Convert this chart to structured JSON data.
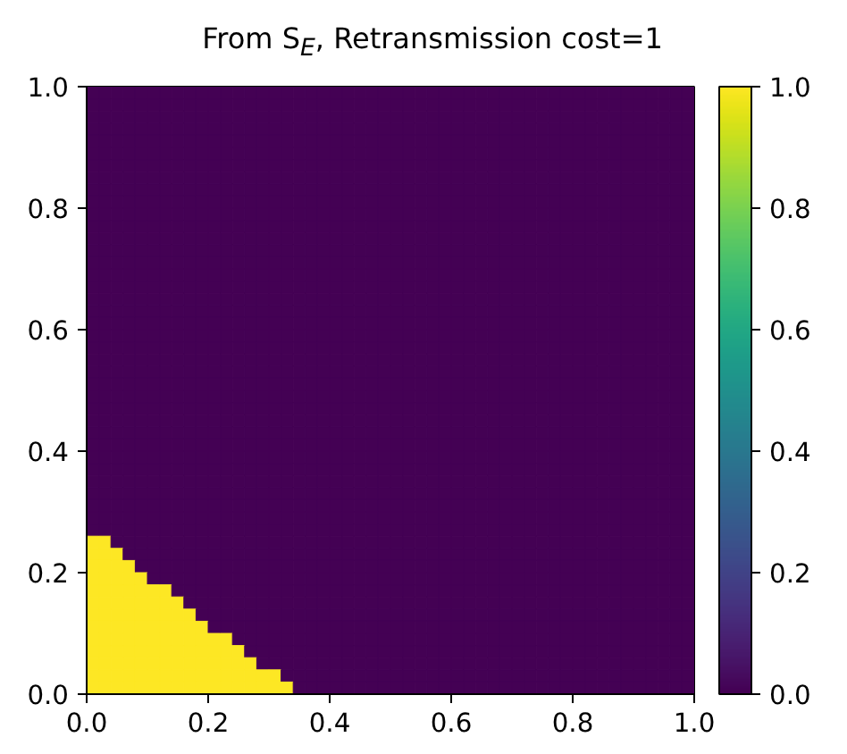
{
  "chart_data": {
    "type": "heatmap",
    "title": "From S$_{E}$, Retransmission cost=1",
    "xlim": [
      0,
      1
    ],
    "ylim": [
      0,
      1
    ],
    "xticks": [
      {
        "value": 0,
        "label": "0.0"
      },
      {
        "value": 0.2,
        "label": "0.2"
      },
      {
        "value": 0.4,
        "label": "0.4"
      },
      {
        "value": 0.6,
        "label": "0.6"
      },
      {
        "value": 0.8,
        "label": "0.8"
      },
      {
        "value": 1,
        "label": "1.0"
      }
    ],
    "yticks": [
      {
        "value": 0,
        "label": "0.0"
      },
      {
        "value": 0.2,
        "label": "0.2"
      },
      {
        "value": 0.4,
        "label": "0.4"
      },
      {
        "value": 0.6,
        "label": "0.6"
      },
      {
        "value": 0.8,
        "label": "0.8"
      },
      {
        "value": 1,
        "label": "1.0"
      }
    ],
    "clim": [
      0,
      1
    ],
    "cticks": [
      {
        "value": 0,
        "label": "0.0"
      },
      {
        "value": 0.2,
        "label": "0.2"
      },
      {
        "value": 0.4,
        "label": "0.4"
      },
      {
        "value": 0.6,
        "label": "0.6"
      },
      {
        "value": 0.8,
        "label": "0.8"
      },
      {
        "value": 1,
        "label": "1.0"
      }
    ],
    "cells": [
      [
        0,
        0,
        0,
        0,
        0,
        0,
        0,
        0,
        0,
        0,
        0,
        0,
        0,
        0,
        0,
        0,
        0,
        0,
        0,
        0,
        0,
        0,
        0,
        0,
        0,
        0,
        0,
        0,
        0,
        0,
        0,
        0,
        0,
        0,
        0,
        0,
        0,
        0,
        0,
        0,
        0,
        0,
        0,
        0,
        0,
        0,
        0,
        0,
        0,
        0
      ],
      [
        0,
        0,
        0,
        0,
        0,
        0,
        0,
        0,
        0,
        0,
        0,
        0,
        0,
        0,
        0,
        0,
        0,
        0,
        0,
        0,
        0,
        0,
        0,
        0,
        0,
        0,
        0,
        0,
        0,
        0,
        0,
        0,
        0,
        0,
        0,
        0,
        0,
        0,
        0,
        0,
        0,
        0,
        0,
        0,
        0,
        0,
        0,
        0,
        0,
        0
      ],
      [
        0,
        0,
        0,
        0,
        0,
        0,
        0,
        0,
        0,
        0,
        0,
        0,
        0,
        0,
        0,
        0,
        0,
        0,
        0,
        0,
        0,
        0,
        0,
        0,
        0,
        0,
        0,
        0,
        0,
        0,
        0,
        0,
        0,
        0,
        0,
        0,
        0,
        0,
        0,
        0,
        0,
        0,
        0,
        0,
        0,
        0,
        0,
        0,
        0,
        0
      ],
      [
        0,
        0,
        0,
        0,
        0,
        0,
        0,
        0,
        0,
        0,
        0,
        0,
        0,
        0,
        0,
        0,
        0,
        0,
        0,
        0,
        0,
        0,
        0,
        0,
        0,
        0,
        0,
        0,
        0,
        0,
        0,
        0,
        0,
        0,
        0,
        0,
        0,
        0,
        0,
        0,
        0,
        0,
        0,
        0,
        0,
        0,
        0,
        0,
        0,
        0
      ],
      [
        0,
        0,
        0,
        0,
        0,
        0,
        0,
        0,
        0,
        0,
        0,
        0,
        0,
        0,
        0,
        0,
        0,
        0,
        0,
        0,
        0,
        0,
        0,
        0,
        0,
        0,
        0,
        0,
        0,
        0,
        0,
        0,
        0,
        0,
        0,
        0,
        0,
        0,
        0,
        0,
        0,
        0,
        0,
        0,
        0,
        0,
        0,
        0,
        0,
        0
      ],
      [
        0,
        0,
        0,
        0,
        0,
        0,
        0,
        0,
        0,
        0,
        0,
        0,
        0,
        0,
        0,
        0,
        0,
        0,
        0,
        0,
        0,
        0,
        0,
        0,
        0,
        0,
        0,
        0,
        0,
        0,
        0,
        0,
        0,
        0,
        0,
        0,
        0,
        0,
        0,
        0,
        0,
        0,
        0,
        0,
        0,
        0,
        0,
        0,
        0,
        0
      ],
      [
        0,
        0,
        0,
        0,
        0,
        0,
        0,
        0,
        0,
        0,
        0,
        0,
        0,
        0,
        0,
        0,
        0,
        0,
        0,
        0,
        0,
        0,
        0,
        0,
        0,
        0,
        0,
        0,
        0,
        0,
        0,
        0,
        0,
        0,
        0,
        0,
        0,
        0,
        0,
        0,
        0,
        0,
        0,
        0,
        0,
        0,
        0,
        0,
        0,
        0
      ],
      [
        0,
        0,
        0,
        0,
        0,
        0,
        0,
        0,
        0,
        0,
        0,
        0,
        0,
        0,
        0,
        0,
        0,
        0,
        0,
        0,
        0,
        0,
        0,
        0,
        0,
        0,
        0,
        0,
        0,
        0,
        0,
        0,
        0,
        0,
        0,
        0,
        0,
        0,
        0,
        0,
        0,
        0,
        0,
        0,
        0,
        0,
        0,
        0,
        0,
        0
      ],
      [
        0,
        0,
        0,
        0,
        0,
        0,
        0,
        0,
        0,
        0,
        0,
        0,
        0,
        0,
        0,
        0,
        0,
        0,
        0,
        0,
        0,
        0,
        0,
        0,
        0,
        0,
        0,
        0,
        0,
        0,
        0,
        0,
        0,
        0,
        0,
        0,
        0,
        0,
        0,
        0,
        0,
        0,
        0,
        0,
        0,
        0,
        0,
        0,
        0,
        0
      ],
      [
        0,
        0,
        0,
        0,
        0,
        0,
        0,
        0,
        0,
        0,
        0,
        0,
        0,
        0,
        0,
        0,
        0,
        0,
        0,
        0,
        0,
        0,
        0,
        0,
        0,
        0,
        0,
        0,
        0,
        0,
        0,
        0,
        0,
        0,
        0,
        0,
        0,
        0,
        0,
        0,
        0,
        0,
        0,
        0,
        0,
        0,
        0,
        0,
        0,
        0
      ],
      [
        0,
        0,
        0,
        0,
        0,
        0,
        0,
        0,
        0,
        0,
        0,
        0,
        0,
        0,
        0,
        0,
        0,
        0,
        0,
        0,
        0,
        0,
        0,
        0,
        0,
        0,
        0,
        0,
        0,
        0,
        0,
        0,
        0,
        0,
        0,
        0,
        0,
        0,
        0,
        0,
        0,
        0,
        0,
        0,
        0,
        0,
        0,
        0,
        0,
        0
      ],
      [
        0,
        0,
        0,
        0,
        0,
        0,
        0,
        0,
        0,
        0,
        0,
        0,
        0,
        0,
        0,
        0,
        0,
        0,
        0,
        0,
        0,
        0,
        0,
        0,
        0,
        0,
        0,
        0,
        0,
        0,
        0,
        0,
        0,
        0,
        0,
        0,
        0,
        0,
        0,
        0,
        0,
        0,
        0,
        0,
        0,
        0,
        0,
        0,
        0,
        0
      ],
      [
        0,
        0,
        0,
        0,
        0,
        0,
        0,
        0,
        0,
        0,
        0,
        0,
        0,
        0,
        0,
        0,
        0,
        0,
        0,
        0,
        0,
        0,
        0,
        0,
        0,
        0,
        0,
        0,
        0,
        0,
        0,
        0,
        0,
        0,
        0,
        0,
        0,
        0,
        0,
        0,
        0,
        0,
        0,
        0,
        0,
        0,
        0,
        0,
        0,
        0
      ],
      [
        0,
        0,
        0,
        0,
        0,
        0,
        0,
        0,
        0,
        0,
        0,
        0,
        0,
        0,
        0,
        0,
        0,
        0,
        0,
        0,
        0,
        0,
        0,
        0,
        0,
        0,
        0,
        0,
        0,
        0,
        0,
        0,
        0,
        0,
        0,
        0,
        0,
        0,
        0,
        0,
        0,
        0,
        0,
        0,
        0,
        0,
        0,
        0,
        0,
        0
      ],
      [
        0,
        0,
        0,
        0,
        0,
        0,
        0,
        0,
        0,
        0,
        0,
        0,
        0,
        0,
        0,
        0,
        0,
        0,
        0,
        0,
        0,
        0,
        0,
        0,
        0,
        0,
        0,
        0,
        0,
        0,
        0,
        0,
        0,
        0,
        0,
        0,
        0,
        0,
        0,
        0,
        0,
        0,
        0,
        0,
        0,
        0,
        0,
        0,
        0,
        0
      ],
      [
        0,
        0,
        0,
        0,
        0,
        0,
        0,
        0,
        0,
        0,
        0,
        0,
        0,
        0,
        0,
        0,
        0,
        0,
        0,
        0,
        0,
        0,
        0,
        0,
        0,
        0,
        0,
        0,
        0,
        0,
        0,
        0,
        0,
        0,
        0,
        0,
        0,
        0,
        0,
        0,
        0,
        0,
        0,
        0,
        0,
        0,
        0,
        0,
        0,
        0
      ],
      [
        0,
        0,
        0,
        0,
        0,
        0,
        0,
        0,
        0,
        0,
        0,
        0,
        0,
        0,
        0,
        0,
        0,
        0,
        0,
        0,
        0,
        0,
        0,
        0,
        0,
        0,
        0,
        0,
        0,
        0,
        0,
        0,
        0,
        0,
        0,
        0,
        0,
        0,
        0,
        0,
        0,
        0,
        0,
        0,
        0,
        0,
        0,
        0,
        0,
        0
      ],
      [
        0,
        0,
        0,
        0,
        0,
        0,
        0,
        0,
        0,
        0,
        0,
        0,
        0,
        0,
        0,
        0,
        0,
        0,
        0,
        0,
        0,
        0,
        0,
        0,
        0,
        0,
        0,
        0,
        0,
        0,
        0,
        0,
        0,
        0,
        0,
        0,
        0,
        0,
        0,
        0,
        0,
        0,
        0,
        0,
        0,
        0,
        0,
        0,
        0,
        0
      ],
      [
        0,
        0,
        0,
        0,
        0,
        0,
        0,
        0,
        0,
        0,
        0,
        0,
        0,
        0,
        0,
        0,
        0,
        0,
        0,
        0,
        0,
        0,
        0,
        0,
        0,
        0,
        0,
        0,
        0,
        0,
        0,
        0,
        0,
        0,
        0,
        0,
        0,
        0,
        0,
        0,
        0,
        0,
        0,
        0,
        0,
        0,
        0,
        0,
        0,
        0
      ],
      [
        0,
        0,
        0,
        0,
        0,
        0,
        0,
        0,
        0,
        0,
        0,
        0,
        0,
        0,
        0,
        0,
        0,
        0,
        0,
        0,
        0,
        0,
        0,
        0,
        0,
        0,
        0,
        0,
        0,
        0,
        0,
        0,
        0,
        0,
        0,
        0,
        0,
        0,
        0,
        0,
        0,
        0,
        0,
        0,
        0,
        0,
        0,
        0,
        0,
        0
      ],
      [
        0,
        0,
        0,
        0,
        0,
        0,
        0,
        0,
        0,
        0,
        0,
        0,
        0,
        0,
        0,
        0,
        0,
        0,
        0,
        0,
        0,
        0,
        0,
        0,
        0,
        0,
        0,
        0,
        0,
        0,
        0,
        0,
        0,
        0,
        0,
        0,
        0,
        0,
        0,
        0,
        0,
        0,
        0,
        0,
        0,
        0,
        0,
        0,
        0,
        0
      ],
      [
        0,
        0,
        0,
        0,
        0,
        0,
        0,
        0,
        0,
        0,
        0,
        0,
        0,
        0,
        0,
        0,
        0,
        0,
        0,
        0,
        0,
        0,
        0,
        0,
        0,
        0,
        0,
        0,
        0,
        0,
        0,
        0,
        0,
        0,
        0,
        0,
        0,
        0,
        0,
        0,
        0,
        0,
        0,
        0,
        0,
        0,
        0,
        0,
        0,
        0
      ],
      [
        0,
        0,
        0,
        0,
        0,
        0,
        0,
        0,
        0,
        0,
        0,
        0,
        0,
        0,
        0,
        0,
        0,
        0,
        0,
        0,
        0,
        0,
        0,
        0,
        0,
        0,
        0,
        0,
        0,
        0,
        0,
        0,
        0,
        0,
        0,
        0,
        0,
        0,
        0,
        0,
        0,
        0,
        0,
        0,
        0,
        0,
        0,
        0,
        0,
        0
      ],
      [
        0,
        0,
        0,
        0,
        0,
        0,
        0,
        0,
        0,
        0,
        0,
        0,
        0,
        0,
        0,
        0,
        0,
        0,
        0,
        0,
        0,
        0,
        0,
        0,
        0,
        0,
        0,
        0,
        0,
        0,
        0,
        0,
        0,
        0,
        0,
        0,
        0,
        0,
        0,
        0,
        0,
        0,
        0,
        0,
        0,
        0,
        0,
        0,
        0,
        0
      ],
      [
        0,
        0,
        0,
        0,
        0,
        0,
        0,
        0,
        0,
        0,
        0,
        0,
        0,
        0,
        0,
        0,
        0,
        0,
        0,
        0,
        0,
        0,
        0,
        0,
        0,
        0,
        0,
        0,
        0,
        0,
        0,
        0,
        0,
        0,
        0,
        0,
        0,
        0,
        0,
        0,
        0,
        0,
        0,
        0,
        0,
        0,
        0,
        0,
        0,
        0
      ],
      [
        0,
        0,
        0,
        0,
        0,
        0,
        0,
        0,
        0,
        0,
        0,
        0,
        0,
        0,
        0,
        0,
        0,
        0,
        0,
        0,
        0,
        0,
        0,
        0,
        0,
        0,
        0,
        0,
        0,
        0,
        0,
        0,
        0,
        0,
        0,
        0,
        0,
        0,
        0,
        0,
        0,
        0,
        0,
        0,
        0,
        0,
        0,
        0,
        0,
        0
      ],
      [
        0,
        0,
        0,
        0,
        0,
        0,
        0,
        0,
        0,
        0,
        0,
        0,
        0,
        0,
        0,
        0,
        0,
        0,
        0,
        0,
        0,
        0,
        0,
        0,
        0,
        0,
        0,
        0,
        0,
        0,
        0,
        0,
        0,
        0,
        0,
        0,
        0,
        0,
        0,
        0,
        0,
        0,
        0,
        0,
        0,
        0,
        0,
        0,
        0,
        0
      ],
      [
        0,
        0,
        0,
        0,
        0,
        0,
        0,
        0,
        0,
        0,
        0,
        0,
        0,
        0,
        0,
        0,
        0,
        0,
        0,
        0,
        0,
        0,
        0,
        0,
        0,
        0,
        0,
        0,
        0,
        0,
        0,
        0,
        0,
        0,
        0,
        0,
        0,
        0,
        0,
        0,
        0,
        0,
        0,
        0,
        0,
        0,
        0,
        0,
        0,
        0
      ],
      [
        0,
        0,
        0,
        0,
        0,
        0,
        0,
        0,
        0,
        0,
        0,
        0,
        0,
        0,
        0,
        0,
        0,
        0,
        0,
        0,
        0,
        0,
        0,
        0,
        0,
        0,
        0,
        0,
        0,
        0,
        0,
        0,
        0,
        0,
        0,
        0,
        0,
        0,
        0,
        0,
        0,
        0,
        0,
        0,
        0,
        0,
        0,
        0,
        0,
        0
      ],
      [
        0,
        0,
        0,
        0,
        0,
        0,
        0,
        0,
        0,
        0,
        0,
        0,
        0,
        0,
        0,
        0,
        0,
        0,
        0,
        0,
        0,
        0,
        0,
        0,
        0,
        0,
        0,
        0,
        0,
        0,
        0,
        0,
        0,
        0,
        0,
        0,
        0,
        0,
        0,
        0,
        0,
        0,
        0,
        0,
        0,
        0,
        0,
        0,
        0,
        0
      ],
      [
        0,
        0,
        0,
        0,
        0,
        0,
        0,
        0,
        0,
        0,
        0,
        0,
        0,
        0,
        0,
        0,
        0,
        0,
        0,
        0,
        0,
        0,
        0,
        0,
        0,
        0,
        0,
        0,
        0,
        0,
        0,
        0,
        0,
        0,
        0,
        0,
        0,
        0,
        0,
        0,
        0,
        0,
        0,
        0,
        0,
        0,
        0,
        0,
        0,
        0
      ],
      [
        0,
        0,
        0,
        0,
        0,
        0,
        0,
        0,
        0,
        0,
        0,
        0,
        0,
        0,
        0,
        0,
        0,
        0,
        0,
        0,
        0,
        0,
        0,
        0,
        0,
        0,
        0,
        0,
        0,
        0,
        0,
        0,
        0,
        0,
        0,
        0,
        0,
        0,
        0,
        0,
        0,
        0,
        0,
        0,
        0,
        0,
        0,
        0,
        0,
        0
      ],
      [
        0,
        0,
        0,
        0,
        0,
        0,
        0,
        0,
        0,
        0,
        0,
        0,
        0,
        0,
        0,
        0,
        0,
        0,
        0,
        0,
        0,
        0,
        0,
        0,
        0,
        0,
        0,
        0,
        0,
        0,
        0,
        0,
        0,
        0,
        0,
        0,
        0,
        0,
        0,
        0,
        0,
        0,
        0,
        0,
        0,
        0,
        0,
        0,
        0,
        0
      ],
      [
        0,
        0,
        0,
        0,
        0,
        0,
        0,
        0,
        0,
        0,
        0,
        0,
        0,
        0,
        0,
        0,
        0,
        0,
        0,
        0,
        0,
        0,
        0,
        0,
        0,
        0,
        0,
        0,
        0,
        0,
        0,
        0,
        0,
        0,
        0,
        0,
        0,
        0,
        0,
        0,
        0,
        0,
        0,
        0,
        0,
        0,
        0,
        0,
        0,
        0
      ],
      [
        0,
        0,
        0,
        0,
        0,
        0,
        0,
        0,
        0,
        0,
        0,
        0,
        0,
        0,
        0,
        0,
        0,
        0,
        0,
        0,
        0,
        0,
        0,
        0,
        0,
        0,
        0,
        0,
        0,
        0,
        0,
        0,
        0,
        0,
        0,
        0,
        0,
        0,
        0,
        0,
        0,
        0,
        0,
        0,
        0,
        0,
        0,
        0,
        0,
        0
      ],
      [
        0,
        0,
        0,
        0,
        0,
        0,
        0,
        0,
        0,
        0,
        0,
        0,
        0,
        0,
        0,
        0,
        0,
        0,
        0,
        0,
        0,
        0,
        0,
        0,
        0,
        0,
        0,
        0,
        0,
        0,
        0,
        0,
        0,
        0,
        0,
        0,
        0,
        0,
        0,
        0,
        0,
        0,
        0,
        0,
        0,
        0,
        0,
        0,
        0,
        0
      ],
      [
        0,
        0,
        0,
        0,
        0,
        0,
        0,
        0,
        0,
        0,
        0,
        0,
        0,
        0,
        0,
        0,
        0,
        0,
        0,
        0,
        0,
        0,
        0,
        0,
        0,
        0,
        0,
        0,
        0,
        0,
        0,
        0,
        0,
        0,
        0,
        0,
        0,
        0,
        0,
        0,
        0,
        0,
        0,
        0,
        0,
        0,
        0,
        0,
        0,
        0
      ],
      [
        1,
        1,
        0,
        0,
        0,
        0,
        0,
        0,
        0,
        0,
        0,
        0,
        0,
        0,
        0,
        0,
        0,
        0,
        0,
        0,
        0,
        0,
        0,
        0,
        0,
        0,
        0,
        0,
        0,
        0,
        0,
        0,
        0,
        0,
        0,
        0,
        0,
        0,
        0,
        0,
        0,
        0,
        0,
        0,
        0,
        0,
        0,
        0,
        0,
        0
      ],
      [
        1,
        1,
        1,
        0,
        0,
        0,
        0,
        0,
        0,
        0,
        0,
        0,
        0,
        0,
        0,
        0,
        0,
        0,
        0,
        0,
        0,
        0,
        0,
        0,
        0,
        0,
        0,
        0,
        0,
        0,
        0,
        0,
        0,
        0,
        0,
        0,
        0,
        0,
        0,
        0,
        0,
        0,
        0,
        0,
        0,
        0,
        0,
        0,
        0,
        0
      ],
      [
        1,
        1,
        1,
        1,
        0,
        0,
        0,
        0,
        0,
        0,
        0,
        0,
        0,
        0,
        0,
        0,
        0,
        0,
        0,
        0,
        0,
        0,
        0,
        0,
        0,
        0,
        0,
        0,
        0,
        0,
        0,
        0,
        0,
        0,
        0,
        0,
        0,
        0,
        0,
        0,
        0,
        0,
        0,
        0,
        0,
        0,
        0,
        0,
        0,
        0
      ],
      [
        1,
        1,
        1,
        1,
        1,
        0,
        0,
        0,
        0,
        0,
        0,
        0,
        0,
        0,
        0,
        0,
        0,
        0,
        0,
        0,
        0,
        0,
        0,
        0,
        0,
        0,
        0,
        0,
        0,
        0,
        0,
        0,
        0,
        0,
        0,
        0,
        0,
        0,
        0,
        0,
        0,
        0,
        0,
        0,
        0,
        0,
        0,
        0,
        0,
        0
      ],
      [
        1,
        1,
        1,
        1,
        1,
        1,
        1,
        0,
        0,
        0,
        0,
        0,
        0,
        0,
        0,
        0,
        0,
        0,
        0,
        0,
        0,
        0,
        0,
        0,
        0,
        0,
        0,
        0,
        0,
        0,
        0,
        0,
        0,
        0,
        0,
        0,
        0,
        0,
        0,
        0,
        0,
        0,
        0,
        0,
        0,
        0,
        0,
        0,
        0,
        0
      ],
      [
        1,
        1,
        1,
        1,
        1,
        1,
        1,
        1,
        0,
        0,
        0,
        0,
        0,
        0,
        0,
        0,
        0,
        0,
        0,
        0,
        0,
        0,
        0,
        0,
        0,
        0,
        0,
        0,
        0,
        0,
        0,
        0,
        0,
        0,
        0,
        0,
        0,
        0,
        0,
        0,
        0,
        0,
        0,
        0,
        0,
        0,
        0,
        0,
        0,
        0
      ],
      [
        1,
        1,
        1,
        1,
        1,
        1,
        1,
        1,
        1,
        0,
        0,
        0,
        0,
        0,
        0,
        0,
        0,
        0,
        0,
        0,
        0,
        0,
        0,
        0,
        0,
        0,
        0,
        0,
        0,
        0,
        0,
        0,
        0,
        0,
        0,
        0,
        0,
        0,
        0,
        0,
        0,
        0,
        0,
        0,
        0,
        0,
        0,
        0,
        0,
        0
      ],
      [
        1,
        1,
        1,
        1,
        1,
        1,
        1,
        1,
        1,
        1,
        0,
        0,
        0,
        0,
        0,
        0,
        0,
        0,
        0,
        0,
        0,
        0,
        0,
        0,
        0,
        0,
        0,
        0,
        0,
        0,
        0,
        0,
        0,
        0,
        0,
        0,
        0,
        0,
        0,
        0,
        0,
        0,
        0,
        0,
        0,
        0,
        0,
        0,
        0,
        0
      ],
      [
        1,
        1,
        1,
        1,
        1,
        1,
        1,
        1,
        1,
        1,
        1,
        1,
        0,
        0,
        0,
        0,
        0,
        0,
        0,
        0,
        0,
        0,
        0,
        0,
        0,
        0,
        0,
        0,
        0,
        0,
        0,
        0,
        0,
        0,
        0,
        0,
        0,
        0,
        0,
        0,
        0,
        0,
        0,
        0,
        0,
        0,
        0,
        0,
        0,
        0
      ],
      [
        1,
        1,
        1,
        1,
        1,
        1,
        1,
        1,
        1,
        1,
        1,
        1,
        1,
        0,
        0,
        0,
        0,
        0,
        0,
        0,
        0,
        0,
        0,
        0,
        0,
        0,
        0,
        0,
        0,
        0,
        0,
        0,
        0,
        0,
        0,
        0,
        0,
        0,
        0,
        0,
        0,
        0,
        0,
        0,
        0,
        0,
        0,
        0,
        0,
        0
      ],
      [
        1,
        1,
        1,
        1,
        1,
        1,
        1,
        1,
        1,
        1,
        1,
        1,
        1,
        1,
        0,
        0,
        0,
        0,
        0,
        0,
        0,
        0,
        0,
        0,
        0,
        0,
        0,
        0,
        0,
        0,
        0,
        0,
        0,
        0,
        0,
        0,
        0,
        0,
        0,
        0,
        0,
        0,
        0,
        0,
        0,
        0,
        0,
        0,
        0,
        0
      ],
      [
        1,
        1,
        1,
        1,
        1,
        1,
        1,
        1,
        1,
        1,
        1,
        1,
        1,
        1,
        1,
        1,
        0,
        0,
        0,
        0,
        0,
        0,
        0,
        0,
        0,
        0,
        0,
        0,
        0,
        0,
        0,
        0,
        0,
        0,
        0,
        0,
        0,
        0,
        0,
        0,
        0,
        0,
        0,
        0,
        0,
        0,
        0,
        0,
        0,
        0
      ],
      [
        1,
        1,
        1,
        1,
        1,
        1,
        1,
        1,
        1,
        1,
        1,
        1,
        1,
        1,
        1,
        1,
        1,
        0,
        0,
        0,
        0,
        0,
        0,
        0,
        0,
        0,
        0,
        0,
        0,
        0,
        0,
        0,
        0,
        0,
        0,
        0,
        0,
        0,
        0,
        0,
        0,
        0,
        0,
        0,
        0,
        0,
        0,
        0,
        0,
        0
      ]
    ]
  }
}
